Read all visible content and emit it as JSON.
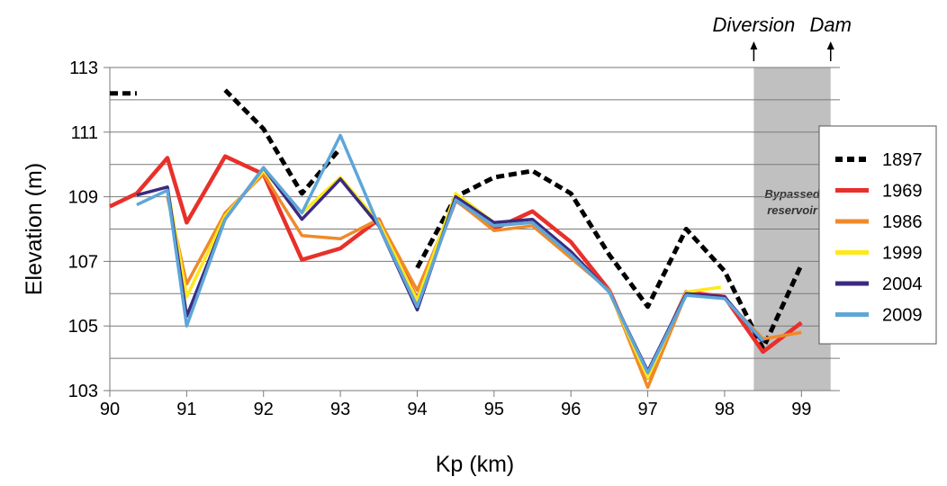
{
  "chart_data": {
    "type": "line",
    "xlabel": "Kp (km)",
    "ylabel": "Elevation (m)",
    "xlim": [
      90,
      99.5
    ],
    "ylim": [
      103,
      113
    ],
    "xticks": [
      "90",
      "91",
      "92",
      "93",
      "94",
      "95",
      "96",
      "97",
      "98",
      "99"
    ],
    "yticks": [
      "103",
      "105",
      "107",
      "109",
      "111",
      "113"
    ],
    "grid": "horizontal",
    "legend_position": "right",
    "shaded_region": {
      "x": [
        98.38,
        99.38
      ],
      "label": "Bypassed reservoir",
      "color": "#c0c0c0"
    },
    "annotations": [
      {
        "text": "Diversion",
        "x": 98.38
      },
      {
        "text": "Dam",
        "x": 99.38
      }
    ],
    "series": [
      {
        "name": "1897",
        "color": "#000000",
        "dashed": true,
        "segments": [
          [
            [
              90,
              112.2
            ],
            [
              90.35,
              112.2
            ]
          ],
          [
            [
              91.5,
              112.3
            ],
            [
              92,
              111.1
            ],
            [
              92.5,
              109.1
            ],
            [
              93,
              110.5
            ]
          ],
          [
            [
              94,
              106.8
            ],
            [
              94.5,
              109.0
            ],
            [
              95,
              109.6
            ],
            [
              95.5,
              109.8
            ],
            [
              96,
              109.1
            ],
            [
              96.5,
              107.2
            ],
            [
              97,
              105.6
            ],
            [
              97.5,
              108.0
            ],
            [
              98,
              106.7
            ],
            [
              98.5,
              104.3
            ],
            [
              99,
              106.9
            ]
          ]
        ]
      },
      {
        "name": "1969",
        "color": "#e8302a",
        "dashed": false,
        "segments": [
          [
            [
              90,
              108.7
            ],
            [
              90.35,
              109.1
            ],
            [
              90.75,
              110.2
            ],
            [
              91,
              108.2
            ],
            [
              91.5,
              110.25
            ],
            [
              92,
              109.7
            ],
            [
              92.5,
              107.05
            ],
            [
              93,
              107.4
            ],
            [
              93.5,
              108.3
            ],
            [
              94,
              105.8
            ],
            [
              94.5,
              108.9
            ],
            [
              95,
              108.0
            ],
            [
              95.5,
              108.55
            ],
            [
              96,
              107.6
            ],
            [
              96.5,
              106.1
            ],
            [
              97,
              103.4
            ],
            [
              97.5,
              106.05
            ],
            [
              98,
              105.9
            ],
            [
              98.5,
              104.2
            ],
            [
              99,
              105.1
            ]
          ]
        ]
      },
      {
        "name": "1986",
        "color": "#ef8a2a",
        "dashed": false,
        "segments": [
          [
            [
              90.75,
              109.0
            ],
            [
              91,
              106.3
            ],
            [
              91.5,
              108.5
            ],
            [
              92,
              109.7
            ],
            [
              92.5,
              107.8
            ],
            [
              93,
              107.7
            ],
            [
              93.5,
              108.3
            ],
            [
              94,
              106.1
            ],
            [
              94.5,
              108.9
            ],
            [
              95,
              107.95
            ],
            [
              95.5,
              108.1
            ],
            [
              96,
              107.1
            ],
            [
              96.5,
              106.1
            ],
            [
              97,
              103.1
            ],
            [
              97.5,
              106.0
            ],
            [
              98,
              105.85
            ],
            [
              98.5,
              104.6
            ],
            [
              99,
              104.8
            ]
          ]
        ]
      },
      {
        "name": "1999",
        "color": "#ffe81a",
        "dashed": false,
        "segments": [
          [
            [
              90.75,
              109.3
            ],
            [
              91,
              105.9
            ],
            [
              91.5,
              108.4
            ],
            [
              92,
              109.8
            ],
            [
              92.5,
              108.5
            ],
            [
              93,
              109.6
            ],
            [
              93.5,
              108.2
            ],
            [
              94,
              105.8
            ],
            [
              94.5,
              109.1
            ],
            [
              95,
              108.2
            ],
            [
              95.5,
              108.2
            ],
            [
              96,
              107.3
            ],
            [
              96.5,
              106.05
            ],
            [
              97,
              103.4
            ],
            [
              97.5,
              106.05
            ],
            [
              97.95,
              106.2
            ]
          ]
        ]
      },
      {
        "name": "2004",
        "color": "#3b2a82",
        "dashed": false,
        "segments": [
          [
            [
              90.35,
              109.05
            ],
            [
              90.75,
              109.3
            ],
            [
              91,
              105.3
            ],
            [
              91.5,
              108.3
            ],
            [
              92,
              109.9
            ],
            [
              92.5,
              108.3
            ],
            [
              93,
              109.55
            ],
            [
              93.5,
              108.1
            ],
            [
              94,
              105.5
            ],
            [
              94.5,
              109.0
            ],
            [
              95,
              108.2
            ],
            [
              95.5,
              108.3
            ],
            [
              96,
              107.3
            ],
            [
              96.5,
              106.05
            ],
            [
              97,
              103.6
            ],
            [
              97.5,
              106.0
            ],
            [
              98,
              105.9
            ],
            [
              98.5,
              104.5
            ]
          ]
        ]
      },
      {
        "name": "2009",
        "color": "#5ea6d8",
        "dashed": false,
        "segments": [
          [
            [
              90.35,
              108.75
            ],
            [
              90.75,
              109.2
            ],
            [
              91,
              105.0
            ],
            [
              91.5,
              108.3
            ],
            [
              92,
              109.9
            ],
            [
              92.5,
              108.5
            ],
            [
              93,
              110.9
            ],
            [
              93.5,
              108.1
            ],
            [
              94,
              105.6
            ],
            [
              94.5,
              108.9
            ],
            [
              95,
              108.1
            ],
            [
              95.5,
              108.2
            ],
            [
              96,
              107.2
            ],
            [
              96.5,
              106.05
            ],
            [
              97,
              103.55
            ],
            [
              97.5,
              105.95
            ],
            [
              98,
              105.85
            ],
            [
              98.5,
              104.55
            ]
          ]
        ]
      }
    ]
  }
}
